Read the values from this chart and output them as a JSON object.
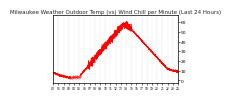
{
  "title": "Milwaukee Weather Outdoor Temp (vs) Wind Chill per Minute (Last 24 Hours)",
  "background_color": "#ffffff",
  "line_color": "#ff0000",
  "y_ticks": [
    0,
    10,
    20,
    30,
    40,
    50,
    60
  ],
  "ylim": [
    -3,
    67
  ],
  "xlim": [
    0,
    1440
  ],
  "num_points": 1440,
  "grid_color": "#999999",
  "border_color": "#000000",
  "title_fontsize": 4.0,
  "tick_fontsize": 3.2,
  "linewidth": 0.4
}
